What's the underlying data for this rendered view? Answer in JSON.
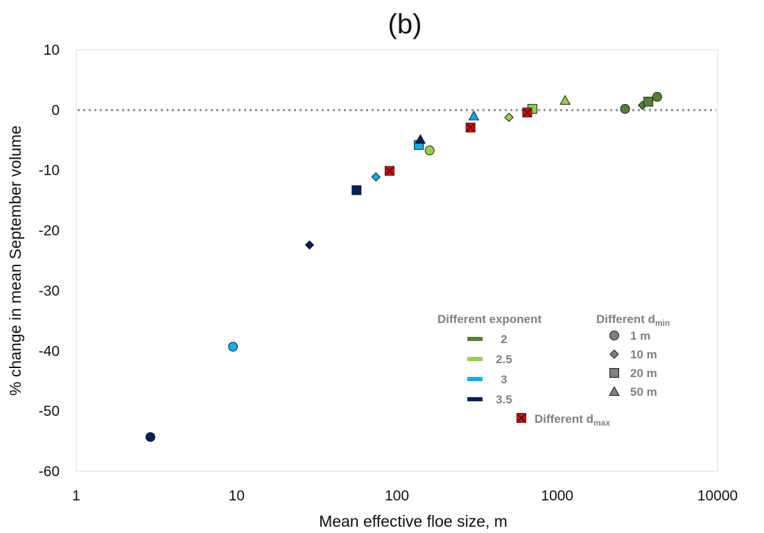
{
  "chart_data": {
    "type": "scatter",
    "title": "(b)",
    "xlabel": "Mean effective floe size, m",
    "ylabel": "% change in mean September volume",
    "x_scale": "log",
    "xlim": [
      1,
      10000
    ],
    "ylim": [
      -60,
      10
    ],
    "x_ticks": [
      "1",
      "10",
      "100",
      "1000",
      "10000"
    ],
    "y_ticks": [
      "10",
      "0",
      "-10",
      "-20",
      "-30",
      "-40",
      "-50",
      "-60"
    ],
    "reference_line": {
      "y": 0,
      "style": "dotted"
    },
    "colors": {
      "2": "#548235",
      "2.5": "#92d050",
      "3": "#00b0f0",
      "3.5": "#002060",
      "dmax": "#ff0000",
      "legend_marker": "#7f7f7f"
    },
    "series": [
      {
        "name": "2",
        "points": [
          {
            "x": 2650,
            "y": 0.2,
            "marker": "circle"
          },
          {
            "x": 4200,
            "y": 2.2,
            "marker": "circle"
          },
          {
            "x": 3400,
            "y": 0.8,
            "marker": "diamond"
          },
          {
            "x": 3700,
            "y": 1.4,
            "marker": "square"
          }
        ]
      },
      {
        "name": "2.5",
        "points": [
          {
            "x": 160,
            "y": -6.7,
            "marker": "circle"
          },
          {
            "x": 500,
            "y": -1.2,
            "marker": "diamond"
          },
          {
            "x": 700,
            "y": 0.2,
            "marker": "square"
          },
          {
            "x": 1120,
            "y": 1.6,
            "marker": "triangle"
          }
        ]
      },
      {
        "name": "3",
        "points": [
          {
            "x": 9.5,
            "y": -39.3,
            "marker": "circle"
          },
          {
            "x": 74,
            "y": -11.1,
            "marker": "diamond"
          },
          {
            "x": 137,
            "y": -5.8,
            "marker": "square"
          },
          {
            "x": 302,
            "y": -1.0,
            "marker": "triangle"
          }
        ]
      },
      {
        "name": "3.5",
        "points": [
          {
            "x": 2.9,
            "y": -54.3,
            "marker": "circle"
          },
          {
            "x": 28.5,
            "y": -22.4,
            "marker": "diamond"
          },
          {
            "x": 56,
            "y": -13.3,
            "marker": "square"
          },
          {
            "x": 140,
            "y": -4.9,
            "marker": "triangle"
          }
        ]
      },
      {
        "name": "Different dmax",
        "points": [
          {
            "x": 90,
            "y": -10.1,
            "marker": "x-square"
          },
          {
            "x": 288,
            "y": -2.9,
            "marker": "x-square"
          },
          {
            "x": 650,
            "y": -0.4,
            "marker": "x-square"
          }
        ]
      }
    ],
    "legend": {
      "position": "bottom-right",
      "exponent_title": "Different exponent",
      "exponent_entries": [
        {
          "label": "2",
          "color": "#548235"
        },
        {
          "label": "2.5",
          "color": "#92d050"
        },
        {
          "label": "3",
          "color": "#00b0f0"
        },
        {
          "label": "3.5",
          "color": "#002060"
        }
      ],
      "dmin_title": "Different d",
      "dmin_title_sub": "min",
      "dmin_entries": [
        {
          "label": "1 m",
          "marker": "circle"
        },
        {
          "label": "10 m",
          "marker": "diamond"
        },
        {
          "label": "20 m",
          "marker": "square"
        },
        {
          "label": "50 m",
          "marker": "triangle"
        }
      ],
      "dmax_label": "Different d",
      "dmax_label_sub": "max"
    }
  }
}
